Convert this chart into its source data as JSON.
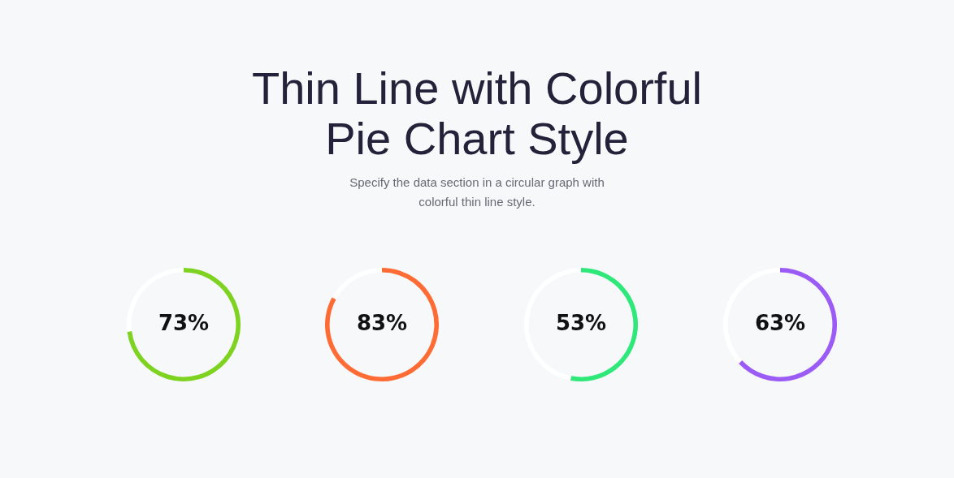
{
  "chart_data": [
    {
      "type": "donut",
      "title": "Thin Line with Colorful Pie Chart Style",
      "subtitle": "Specify the data section in a circular graph with colorful thin line style.",
      "categories": [
        null,
        null
      ],
      "values": [
        73,
        27
      ],
      "colors": [
        "#7ed321",
        "#ffffff"
      ],
      "value_labels": [
        "73%",
        null
      ]
    },
    {
      "type": "donut",
      "categories": [
        null,
        null
      ],
      "values": [
        83,
        17
      ],
      "colors": [
        "#ff6b35",
        "#ffffff"
      ],
      "value_labels": [
        "83%",
        null
      ]
    },
    {
      "type": "donut",
      "categories": [
        null,
        null
      ],
      "values": [
        53,
        47
      ],
      "colors": [
        "#2ee87a",
        "#ffffff"
      ],
      "value_labels": [
        "53%",
        null
      ]
    },
    {
      "type": "donut",
      "categories": [
        null,
        null
      ],
      "values": [
        63,
        37
      ],
      "colors": [
        "#9b5cf6",
        "#ffffff"
      ],
      "value_labels": [
        "63%",
        null
      ]
    }
  ]
}
